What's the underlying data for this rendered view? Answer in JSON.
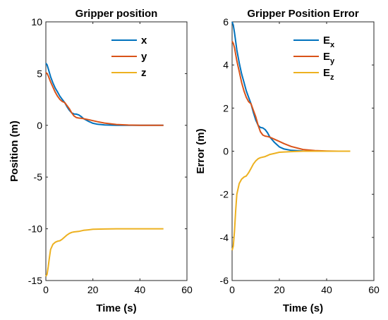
{
  "chart_data": [
    {
      "type": "line",
      "title": "Gripper position",
      "xlabel": "Time (s)",
      "ylabel": "Position (m)",
      "xlim": [
        0,
        60
      ],
      "ylim": [
        -15,
        10
      ],
      "xticks": [
        "0",
        "20",
        "40",
        "60"
      ],
      "yticks": [
        "-15",
        "-10",
        "-5",
        "0",
        "5",
        "10"
      ],
      "legend_position": "top-right",
      "grid": false,
      "series": [
        {
          "name": "x",
          "color": "#0072BD",
          "x": [
            0,
            0.5,
            1,
            2,
            3,
            4,
            5,
            6,
            7,
            8,
            9,
            10,
            11,
            12,
            13,
            14,
            15,
            16,
            18,
            20,
            22,
            25,
            30,
            35,
            40,
            45,
            50
          ],
          "y": [
            6.0,
            5.85,
            5.5,
            4.7,
            4.1,
            3.6,
            3.2,
            2.8,
            2.5,
            2.2,
            1.8,
            1.45,
            1.2,
            1.1,
            1.08,
            1.0,
            0.85,
            0.65,
            0.4,
            0.2,
            0.1,
            0.04,
            0.01,
            0.0,
            0.0,
            0.0,
            0.0
          ]
        },
        {
          "name": "y",
          "color": "#D95319",
          "x": [
            0,
            0.5,
            1,
            2,
            3,
            4,
            5,
            6,
            7,
            8,
            9,
            10,
            11,
            12,
            13,
            14,
            15,
            16,
            18,
            20,
            22,
            25,
            30,
            35,
            40,
            45,
            50
          ],
          "y": [
            5.1,
            5.0,
            4.8,
            4.2,
            3.7,
            3.2,
            2.8,
            2.5,
            2.3,
            2.2,
            1.9,
            1.6,
            1.2,
            0.9,
            0.75,
            0.7,
            0.68,
            0.65,
            0.55,
            0.45,
            0.35,
            0.22,
            0.08,
            0.03,
            0.01,
            0.0,
            0.0
          ]
        },
        {
          "name": "z",
          "color": "#EDB120",
          "x": [
            0,
            0.5,
            1,
            1.5,
            2,
            3,
            4,
            5,
            6,
            7,
            8,
            9,
            10,
            11,
            12,
            14,
            16,
            18,
            20,
            25,
            30,
            35,
            40,
            45,
            50
          ],
          "y": [
            -14.6,
            -14.4,
            -13.7,
            -12.8,
            -12.0,
            -11.5,
            -11.3,
            -11.2,
            -11.15,
            -11.0,
            -10.8,
            -10.6,
            -10.45,
            -10.35,
            -10.3,
            -10.25,
            -10.15,
            -10.1,
            -10.05,
            -10.02,
            -10.0,
            -10.0,
            -10.0,
            -10.0,
            -10.0
          ]
        }
      ]
    },
    {
      "type": "line",
      "title": "Gripper Position Error",
      "xlabel": "Time (s)",
      "ylabel": "Error (m)",
      "xlim": [
        0,
        60
      ],
      "ylim": [
        -6,
        6
      ],
      "xticks": [
        "0",
        "20",
        "40",
        "60"
      ],
      "yticks": [
        "-6",
        "-4",
        "-2",
        "0",
        "2",
        "4",
        "6"
      ],
      "legend_position": "top-right",
      "grid": false,
      "series": [
        {
          "name": "E",
          "subscript": "x",
          "color": "#0072BD",
          "x": [
            0,
            0.5,
            1,
            2,
            3,
            4,
            5,
            6,
            7,
            8,
            9,
            10,
            11,
            12,
            13,
            14,
            15,
            16,
            18,
            20,
            22,
            25,
            30,
            35,
            40,
            45,
            50
          ],
          "y": [
            6.0,
            5.85,
            5.5,
            4.7,
            4.1,
            3.6,
            3.2,
            2.8,
            2.5,
            2.2,
            1.8,
            1.45,
            1.2,
            1.1,
            1.08,
            1.0,
            0.85,
            0.65,
            0.4,
            0.2,
            0.1,
            0.04,
            0.01,
            0.0,
            0.0,
            0.0,
            0.0
          ]
        },
        {
          "name": "E",
          "subscript": "y",
          "color": "#D95319",
          "x": [
            0,
            0.5,
            1,
            2,
            3,
            4,
            5,
            6,
            7,
            8,
            9,
            10,
            11,
            12,
            13,
            14,
            15,
            16,
            18,
            20,
            22,
            25,
            30,
            35,
            40,
            45,
            50
          ],
          "y": [
            5.1,
            5.0,
            4.8,
            4.2,
            3.7,
            3.2,
            2.8,
            2.5,
            2.3,
            2.2,
            1.9,
            1.6,
            1.2,
            0.9,
            0.75,
            0.7,
            0.68,
            0.65,
            0.55,
            0.45,
            0.35,
            0.22,
            0.08,
            0.03,
            0.01,
            0.0,
            0.0
          ]
        },
        {
          "name": "E",
          "subscript": "z",
          "color": "#EDB120",
          "x": [
            0,
            0.5,
            1,
            1.5,
            2,
            3,
            4,
            5,
            6,
            7,
            8,
            9,
            10,
            11,
            12,
            14,
            16,
            18,
            20,
            25,
            30,
            35,
            40,
            45,
            50
          ],
          "y": [
            -4.6,
            -4.4,
            -3.7,
            -2.8,
            -2.0,
            -1.5,
            -1.3,
            -1.2,
            -1.15,
            -1.0,
            -0.8,
            -0.6,
            -0.45,
            -0.35,
            -0.3,
            -0.25,
            -0.15,
            -0.1,
            -0.05,
            -0.02,
            0.0,
            0.0,
            0.0,
            0.0,
            0.0
          ]
        }
      ]
    }
  ]
}
